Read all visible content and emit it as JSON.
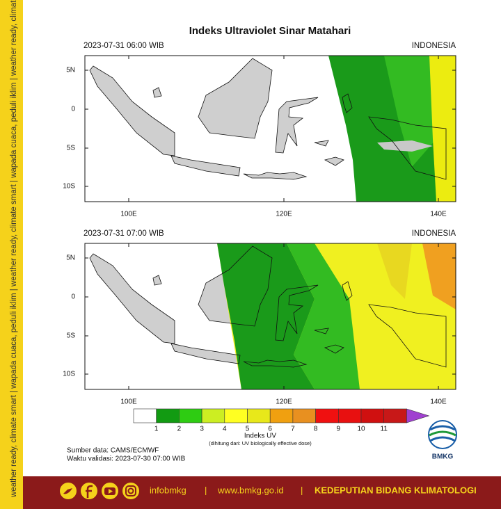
{
  "title": "Indeks Ultraviolet Sinar Matahari",
  "side_strip": "weather ready, climate smart | wapada cuaca, peduli iklim | weather ready, climate smart | wapada cuaca, peduli iklim | weather ready, climate smart",
  "panels": [
    {
      "time": "2023-07-31  06:00 WIB",
      "region": "INDONESIA"
    },
    {
      "time": "2023-07-31  07:00 WIB",
      "region": "INDONESIA"
    }
  ],
  "lat_labels": [
    "5N",
    "0",
    "5S",
    "10S"
  ],
  "lon_labels": [
    "100E",
    "120E",
    "140E"
  ],
  "colorbar": {
    "labels": [
      1,
      2,
      3,
      4,
      5,
      6,
      7,
      8,
      9,
      10,
      11
    ],
    "title": "Indeks UV",
    "note": "(dihitung dari: UV biologically effective dose)"
  },
  "source": "Sumber data: CAMS/ECMWF",
  "validity": "Waktu validasi: 2023-07-30 07:00 WIB",
  "logo": "BMKG",
  "footer": {
    "handle": "infobmkg",
    "sep1": "|",
    "website": "www.bmkg.go.id",
    "sep2": "|",
    "department": "KEDEPUTIAN BIDANG KLIMATOLOGI"
  }
}
